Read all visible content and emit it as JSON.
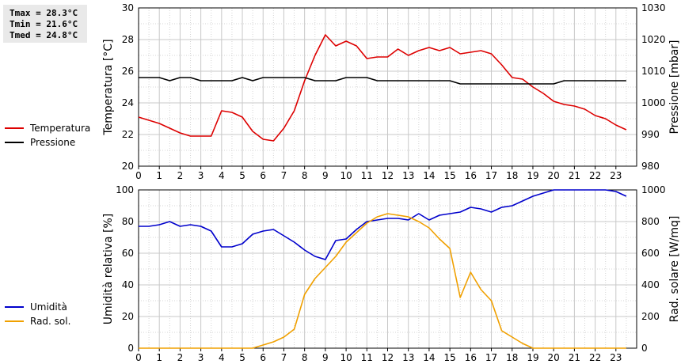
{
  "stats": {
    "tmax": "Tmax = 28.3°C",
    "tmin": "Tmin = 21.6°C",
    "tmed": "Tmed = 24.8°C"
  },
  "chart_data": [
    {
      "type": "line",
      "title": "",
      "xlabel": "",
      "ylabel": "Temperatura [°C]",
      "ylabel_right": "Pressione [mbar]",
      "xlim": [
        0,
        24
      ],
      "ylim": [
        20,
        30
      ],
      "ylim_right": [
        980,
        1030
      ],
      "xticks": [
        "0",
        "1",
        "2",
        "3",
        "4",
        "5",
        "6",
        "7",
        "8",
        "9",
        "10",
        "11",
        "12",
        "13",
        "14",
        "15",
        "16",
        "17",
        "18",
        "19",
        "20",
        "21",
        "22",
        "23"
      ],
      "yticks": [
        "20",
        "22",
        "24",
        "26",
        "28",
        "30"
      ],
      "yticks_right": [
        "980",
        "990",
        "1000",
        "1010",
        "1020",
        "1030"
      ],
      "grid": true,
      "legend": "left",
      "series": [
        {
          "name": "Temperatura",
          "axis": "left",
          "color": "#dd0000",
          "x": [
            0,
            0.5,
            1,
            1.5,
            2,
            2.5,
            3,
            3.5,
            4,
            4.5,
            5,
            5.5,
            6,
            6.5,
            7,
            7.5,
            8,
            8.5,
            9,
            9.5,
            10,
            10.5,
            11,
            11.5,
            12,
            12.5,
            13,
            13.5,
            14,
            14.5,
            15,
            15.5,
            16,
            16.5,
            17,
            17.5,
            18,
            18.5,
            19,
            19.5,
            20,
            20.5,
            21,
            21.5,
            22,
            22.5,
            23,
            23.5
          ],
          "values": [
            23.1,
            22.9,
            22.7,
            22.4,
            22.1,
            21.9,
            21.9,
            21.9,
            23.5,
            23.4,
            23.1,
            22.2,
            21.7,
            21.6,
            22.4,
            23.5,
            25.4,
            27.0,
            28.3,
            27.6,
            27.9,
            27.6,
            26.8,
            26.9,
            26.9,
            27.4,
            27.0,
            27.3,
            27.5,
            27.3,
            27.5,
            27.1,
            27.2,
            27.3,
            27.1,
            26.4,
            25.6,
            25.5,
            25.0,
            24.6,
            24.1,
            23.9,
            23.8,
            23.6,
            23.2,
            23.0,
            22.6,
            22.3
          ]
        },
        {
          "name": "Pressione",
          "axis": "right",
          "color": "#000000",
          "x": [
            0,
            0.5,
            1,
            1.5,
            2,
            2.5,
            3,
            3.5,
            4,
            4.5,
            5,
            5.5,
            6,
            6.5,
            7,
            7.5,
            8,
            8.5,
            9,
            9.5,
            10,
            10.5,
            11,
            11.5,
            12,
            12.5,
            13,
            13.5,
            14,
            14.5,
            15,
            15.5,
            16,
            16.5,
            17,
            17.5,
            18,
            18.5,
            19,
            19.5,
            20,
            20.5,
            21,
            21.5,
            22,
            22.5,
            23,
            23.5
          ],
          "values": [
            1008,
            1008,
            1008,
            1007,
            1008,
            1008,
            1007,
            1007,
            1007,
            1007,
            1008,
            1007,
            1008,
            1008,
            1008,
            1008,
            1008,
            1007,
            1007,
            1007,
            1008,
            1008,
            1008,
            1007,
            1007,
            1007,
            1007,
            1007,
            1007,
            1007,
            1007,
            1006,
            1006,
            1006,
            1006,
            1006,
            1006,
            1006,
            1006,
            1006,
            1006,
            1007,
            1007,
            1007,
            1007,
            1007,
            1007,
            1007
          ]
        }
      ]
    },
    {
      "type": "line",
      "title": "",
      "xlabel": "",
      "ylabel": "Umidità relativa [%]",
      "ylabel_right": "Rad. solare [W/mq]",
      "xlim": [
        0,
        24
      ],
      "ylim": [
        0,
        100
      ],
      "ylim_right": [
        0,
        1000
      ],
      "xticks": [
        "0",
        "1",
        "2",
        "3",
        "4",
        "5",
        "6",
        "7",
        "8",
        "9",
        "10",
        "11",
        "12",
        "13",
        "14",
        "15",
        "16",
        "17",
        "18",
        "19",
        "20",
        "21",
        "22",
        "23"
      ],
      "yticks": [
        "0",
        "20",
        "40",
        "60",
        "80",
        "100"
      ],
      "yticks_right": [
        "0",
        "200",
        "400",
        "600",
        "800",
        "1000"
      ],
      "grid": true,
      "legend": "left",
      "series": [
        {
          "name": "Umidità",
          "axis": "left",
          "color": "#0000cc",
          "x": [
            0,
            0.5,
            1,
            1.5,
            2,
            2.5,
            3,
            3.5,
            4,
            4.5,
            5,
            5.5,
            6,
            6.5,
            7,
            7.5,
            8,
            8.5,
            9,
            9.5,
            10,
            10.5,
            11,
            11.5,
            12,
            12.5,
            13,
            13.5,
            14,
            14.5,
            15,
            15.5,
            16,
            16.5,
            17,
            17.5,
            18,
            18.5,
            19,
            19.5,
            20,
            20.5,
            21,
            21.5,
            22,
            22.5,
            23,
            23.5
          ],
          "values": [
            77,
            77,
            78,
            80,
            77,
            78,
            77,
            74,
            64,
            64,
            66,
            72,
            74,
            75,
            71,
            67,
            62,
            58,
            56,
            68,
            69,
            75,
            80,
            81,
            82,
            82,
            81,
            85,
            81,
            84,
            85,
            86,
            89,
            88,
            86,
            89,
            90,
            93,
            96,
            98,
            100,
            100,
            100,
            100,
            100,
            100,
            99,
            96
          ]
        },
        {
          "name": "Rad. sol.",
          "axis": "right",
          "color": "#f0a000",
          "x": [
            0,
            0.5,
            1,
            1.5,
            2,
            2.5,
            3,
            3.5,
            4,
            4.5,
            5,
            5.5,
            6,
            6.5,
            7,
            7.5,
            8,
            8.5,
            9,
            9.5,
            10,
            10.5,
            11,
            11.5,
            12,
            12.5,
            13,
            13.5,
            14,
            14.5,
            15,
            15.5,
            16,
            16.5,
            17,
            17.5,
            18,
            18.5,
            19,
            19.5,
            20,
            20.5,
            21,
            21.5,
            22,
            22.5,
            23,
            23.5
          ],
          "values": [
            0,
            0,
            0,
            0,
            0,
            0,
            0,
            0,
            0,
            0,
            0,
            0,
            20,
            40,
            70,
            120,
            340,
            440,
            510,
            580,
            670,
            730,
            790,
            830,
            850,
            840,
            830,
            800,
            760,
            690,
            630,
            320,
            480,
            370,
            300,
            110,
            70,
            30,
            0,
            0,
            0,
            0,
            0,
            0,
            0,
            0,
            0,
            0
          ]
        }
      ]
    }
  ]
}
